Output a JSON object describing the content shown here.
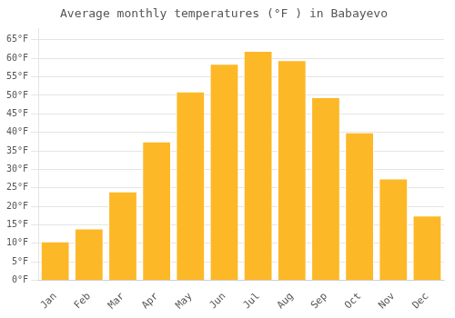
{
  "chart_data": {
    "type": "bar",
    "title": "Average monthly temperatures (°F ) in Babayevo",
    "categories": [
      "Jan",
      "Feb",
      "Mar",
      "Apr",
      "May",
      "Jun",
      "Jul",
      "Aug",
      "Sep",
      "Oct",
      "Nov",
      "Dec"
    ],
    "values": [
      10.5,
      14.0,
      24.0,
      37.5,
      51.0,
      58.5,
      62.0,
      59.5,
      49.5,
      40.0,
      27.5,
      17.5
    ],
    "color": "#FDB827",
    "ylim": [
      0,
      68
    ],
    "yticks": [
      {
        "value": 0,
        "label": "0°F"
      },
      {
        "value": 5,
        "label": "5°F"
      },
      {
        "value": 10,
        "label": "10°F"
      },
      {
        "value": 15,
        "label": "15°F"
      },
      {
        "value": 20,
        "label": "20°F"
      },
      {
        "value": 25,
        "label": "25°F"
      },
      {
        "value": 30,
        "label": "30°F"
      },
      {
        "value": 35,
        "label": "35°F"
      },
      {
        "value": 40,
        "label": "40°F"
      },
      {
        "value": 45,
        "label": "45°F"
      },
      {
        "value": 50,
        "label": "50°F"
      },
      {
        "value": 55,
        "label": "55°F"
      },
      {
        "value": 60,
        "label": "60°F"
      },
      {
        "value": 65,
        "label": "65°F"
      }
    ],
    "grid": true
  }
}
